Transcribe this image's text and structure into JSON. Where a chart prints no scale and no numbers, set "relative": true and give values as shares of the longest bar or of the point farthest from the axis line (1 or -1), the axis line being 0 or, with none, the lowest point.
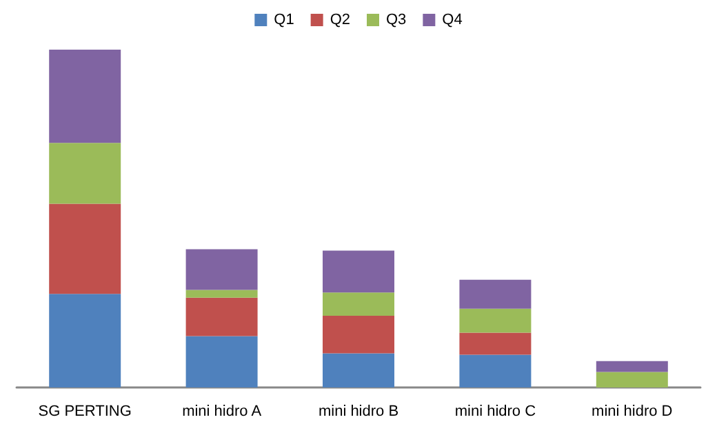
{
  "chart_data": {
    "type": "bar",
    "stacked": true,
    "relative": true,
    "legend": "top",
    "categories": [
      "SG PERTING",
      "mini hidro A",
      "mini hidro B",
      "mini hidro C",
      "mini hidro D"
    ],
    "series": [
      {
        "name": "Q1",
        "color": "#4f81bd",
        "values": [
          0.277,
          0.152,
          0.101,
          0.097,
          0
        ]
      },
      {
        "name": "Q2",
        "color": "#c0504d",
        "values": [
          0.267,
          0.114,
          0.111,
          0.065,
          0
        ]
      },
      {
        "name": "Q3",
        "color": "#9bbb59",
        "values": [
          0.18,
          0.023,
          0.069,
          0.071,
          0.046
        ]
      },
      {
        "name": "Q4",
        "color": "#8064a2",
        "values": [
          0.276,
          0.12,
          0.124,
          0.086,
          0.032
        ]
      }
    ]
  }
}
